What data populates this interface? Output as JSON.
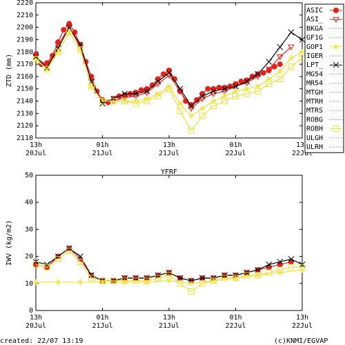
{
  "footer": {
    "created": "created: 22/07 13:19",
    "copyright": "(c)KNMI/EGVAP"
  },
  "colors": {
    "asic": "#e8201a",
    "asi": "#e8201a",
    "gop1": "#f0e040",
    "robh": "#f0e040",
    "lpt": "#000000",
    "grey": "#999999"
  },
  "chart_data": [
    {
      "type": "line",
      "ylabel": "ZTD (mm)",
      "ylim": [
        2110,
        2220
      ],
      "yticks": [
        2110,
        2120,
        2130,
        2140,
        2150,
        2160,
        2170,
        2180,
        2190,
        2200,
        2210,
        2220
      ],
      "xlim": [
        0,
        48
      ],
      "xticks": [
        {
          "t": 0,
          "top": "13h",
          "bottom": "20Jul"
        },
        {
          "t": 12,
          "top": "01h",
          "bottom": "21Jul"
        },
        {
          "t": 24,
          "top": "13h",
          "bottom": "21Jul"
        },
        {
          "t": 36,
          "top": "01h",
          "bottom": "22Jul"
        },
        {
          "t": 48,
          "top": "13h",
          "bottom": "22Jul"
        }
      ],
      "legend": [
        "ASIC",
        "ASI_",
        "BKGA",
        "GF1G",
        "GOP1",
        "IGER",
        "LPT_",
        "MG54",
        "MR54",
        "MTGH",
        "MTRH",
        "MTRS",
        "ROBG",
        "ROBH",
        "ULGH",
        "ULRH"
      ],
      "series": [
        {
          "name": "ASIC",
          "x": [
            0,
            1,
            2,
            3,
            4,
            5,
            6,
            7,
            8,
            9,
            10,
            11,
            12,
            13,
            14,
            15,
            16,
            17,
            18,
            19,
            20,
            21,
            22,
            23,
            24,
            25,
            26,
            27,
            28,
            29,
            30,
            31,
            32,
            33,
            34,
            35,
            36,
            37,
            38,
            39,
            40,
            41,
            42,
            43,
            44
          ],
          "values": [
            2178,
            2170,
            2171,
            2177,
            2188,
            2198,
            2203,
            2196,
            2186,
            2172,
            2160,
            2148,
            2141,
            2139,
            2142,
            2144,
            2145,
            2146,
            2147,
            2149,
            2150,
            2153,
            2158,
            2162,
            2165,
            2158,
            2148,
            2140,
            2137,
            2141,
            2146,
            2150,
            2150,
            2151,
            2151,
            2152,
            2154,
            2156,
            2157,
            2160,
            2162,
            2163,
            2165,
            2168,
            2170
          ]
        },
        {
          "name": "ASI_",
          "x": [
            0,
            2,
            4,
            6,
            8,
            10,
            12,
            14,
            16,
            18,
            20,
            22,
            24,
            26,
            28,
            30,
            32,
            34,
            36,
            38,
            40,
            42,
            44,
            46
          ],
          "values": [
            2176,
            2168,
            2186,
            2200,
            2184,
            2156,
            2140,
            2140,
            2143,
            2144,
            2147,
            2154,
            2161,
            2148,
            2134,
            2142,
            2146,
            2148,
            2152,
            2155,
            2160,
            2166,
            2176,
            2184
          ]
        },
        {
          "name": "GOP1",
          "x": [
            0,
            2,
            4,
            6,
            8,
            10,
            12,
            14,
            16,
            18,
            20,
            22,
            24,
            26,
            28,
            30,
            32,
            34,
            36,
            38,
            40,
            42,
            44,
            46,
            48
          ],
          "values": [
            2175,
            2166,
            2180,
            2196,
            2182,
            2152,
            2140,
            2140,
            2140,
            2140,
            2142,
            2146,
            2152,
            2138,
            2128,
            2134,
            2140,
            2144,
            2148,
            2150,
            2152,
            2158,
            2164,
            2175,
            2180
          ]
        },
        {
          "name": "LPT_",
          "x": [
            0,
            2,
            4,
            6,
            8,
            10,
            12,
            14,
            16,
            18,
            20,
            22,
            24,
            26,
            28,
            30,
            32,
            34,
            36,
            38,
            40,
            42,
            44,
            46,
            48
          ],
          "values": [
            2176,
            2167,
            2183,
            2200,
            2186,
            2156,
            2138,
            2142,
            2146,
            2146,
            2148,
            2156,
            2163,
            2150,
            2136,
            2144,
            2148,
            2150,
            2152,
            2156,
            2162,
            2172,
            2184,
            2196,
            2190
          ]
        },
        {
          "name": "ROBH",
          "x": [
            0,
            2,
            4,
            6,
            8,
            10,
            12,
            14,
            16,
            18,
            20,
            22,
            24,
            26,
            28,
            30,
            32,
            34,
            36,
            38,
            40,
            42,
            44,
            46,
            48
          ],
          "values": [
            2174,
            2166,
            2180,
            2196,
            2182,
            2152,
            2140,
            2140,
            2140,
            2138,
            2140,
            2144,
            2150,
            2132,
            2116,
            2128,
            2136,
            2140,
            2144,
            2146,
            2148,
            2154,
            2158,
            2168,
            2175
          ]
        }
      ]
    },
    {
      "type": "line",
      "title": "YFRF",
      "ylabel": "IWV (kg/m2)",
      "ylim": [
        0,
        50
      ],
      "yticks": [
        0,
        10,
        20,
        30,
        40,
        50
      ],
      "xlim": [
        0,
        48
      ],
      "xticks": [
        {
          "t": 0,
          "top": "13h",
          "bottom": "20Jul"
        },
        {
          "t": 12,
          "top": "01h",
          "bottom": "21Jul"
        },
        {
          "t": 24,
          "top": "13h",
          "bottom": "21Jul"
        },
        {
          "t": 36,
          "top": "01h",
          "bottom": "22Jul"
        },
        {
          "t": 48,
          "top": "13h",
          "bottom": "22Jul"
        }
      ],
      "series": [
        {
          "name": "ASIC",
          "x": [
            0,
            2,
            4,
            6,
            8,
            10,
            12,
            14,
            16,
            18,
            20,
            22,
            24,
            26,
            28,
            30,
            32,
            34,
            36,
            38,
            40,
            42,
            44,
            46
          ],
          "values": [
            17,
            16,
            20,
            23,
            19,
            13,
            11,
            11,
            12,
            12,
            12,
            13,
            14,
            12,
            11,
            12,
            12,
            13,
            13,
            14,
            15,
            16,
            17,
            18
          ]
        },
        {
          "name": "LPT_",
          "x": [
            0,
            2,
            4,
            6,
            8,
            10,
            12,
            14,
            16,
            18,
            20,
            22,
            24,
            26,
            28,
            30,
            32,
            34,
            36,
            38,
            40,
            42,
            44,
            46,
            48
          ],
          "values": [
            18,
            17,
            20,
            23,
            20,
            13,
            11,
            11,
            12,
            12,
            12,
            13,
            14,
            12,
            11,
            12,
            12,
            13,
            13,
            14,
            15,
            17,
            18,
            19,
            17
          ]
        },
        {
          "name": "ROBH",
          "x": [
            0,
            2,
            4,
            6,
            8,
            10,
            12,
            14,
            16,
            18,
            20,
            22,
            24,
            26,
            28,
            30,
            32,
            34,
            36,
            38,
            40,
            42,
            44,
            46,
            48
          ],
          "values": [
            17,
            16,
            19,
            22,
            18,
            12,
            11,
            11,
            11,
            11,
            11,
            12,
            13,
            10,
            7,
            10,
            11,
            12,
            12,
            13,
            13,
            14,
            15,
            16,
            16
          ]
        },
        {
          "name": "GOP1",
          "x": [
            0,
            4,
            8,
            12,
            16,
            20,
            24,
            28,
            32,
            36,
            40,
            44,
            48
          ],
          "values": [
            10.5,
            10.5,
            10.5,
            10.5,
            10.5,
            10.5,
            11,
            10,
            11,
            12,
            13,
            14,
            15
          ]
        }
      ]
    }
  ]
}
